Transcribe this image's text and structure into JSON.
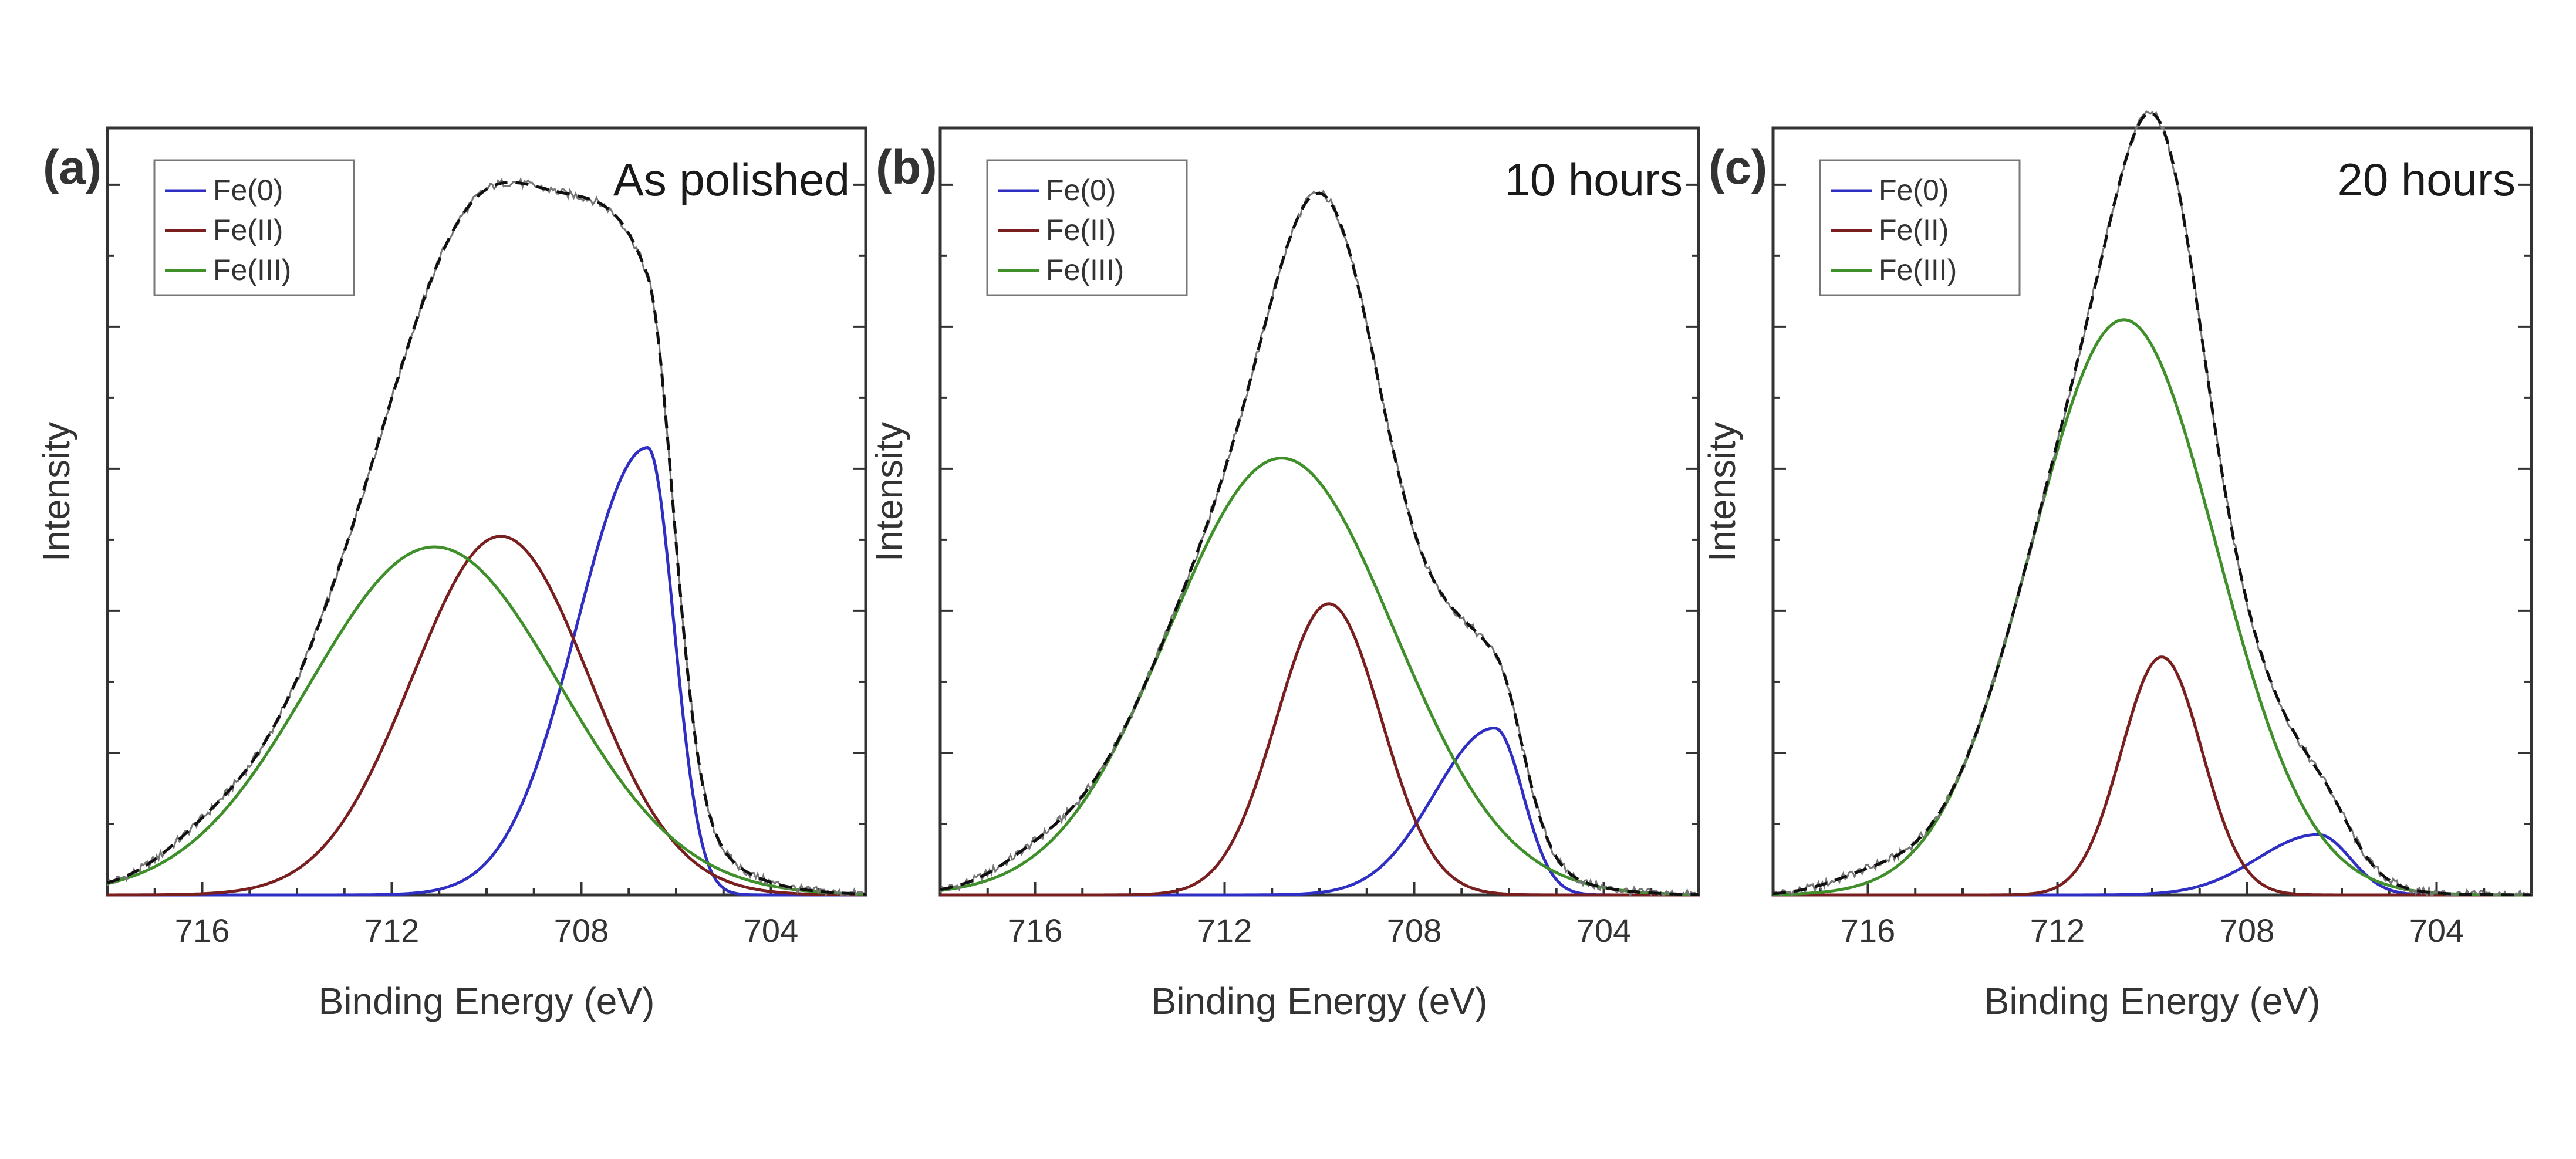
{
  "figure": {
    "colors": {
      "fe0": "#2f2fc4",
      "fe2": "#7a1f1f",
      "fe3": "#3f8f2a",
      "envelope": "#111111",
      "data": "#777777",
      "axis": "#333333"
    }
  },
  "chart_data": [
    {
      "type": "line",
      "panel_label": "(a)",
      "condition_label": "As polished",
      "xlabel": "Binding Energy (eV)",
      "ylabel": "Intensity",
      "x_reversed": true,
      "xlim": [
        718,
        702
      ],
      "ylim": [
        0,
        1.08
      ],
      "xticks": [
        716,
        712,
        708,
        704
      ],
      "xtick_labels": [
        "716",
        "712",
        "708",
        "704"
      ],
      "legend": {
        "placement": "top-left"
      },
      "series": [
        {
          "name": "Fe(0)",
          "color_key": "fe0",
          "peak": {
            "center": 706.6,
            "height": 0.63,
            "fwhm": 1.3,
            "tail": 3.5
          }
        },
        {
          "name": "Fe(II)",
          "color_key": "fe2",
          "peak": {
            "center": 709.7,
            "height": 0.505,
            "fwhm": 4.4
          }
        },
        {
          "name": "Fe(III)",
          "color_key": "fe3",
          "peak": {
            "center": 711.1,
            "height": 0.49,
            "fwhm": 6.2
          }
        }
      ],
      "envelope_peak": {
        "center": 716.0,
        "height": 0.02,
        "fwhm": 2.0
      }
    },
    {
      "type": "line",
      "panel_label": "(b)",
      "condition_label": "10 hours",
      "xlabel": "Binding Energy (eV)",
      "ylabel": "Intensity",
      "x_reversed": true,
      "xlim": [
        718,
        702
      ],
      "ylim": [
        0,
        1.08
      ],
      "xticks": [
        716,
        712,
        708,
        704
      ],
      "xtick_labels": [
        "716",
        "712",
        "708",
        "704"
      ],
      "legend": {
        "placement": "top-left"
      },
      "series": [
        {
          "name": "Fe(0)",
          "color_key": "fe0",
          "peak": {
            "center": 706.3,
            "height": 0.235,
            "fwhm": 1.4,
            "tail": 3.0
          }
        },
        {
          "name": "Fe(II)",
          "color_key": "fe2",
          "peak": {
            "center": 709.8,
            "height": 0.41,
            "fwhm": 2.6
          }
        },
        {
          "name": "Fe(III)",
          "color_key": "fe3",
          "peak": {
            "center": 710.8,
            "height": 0.615,
            "fwhm": 5.6
          }
        }
      ],
      "envelope_peak": {
        "center": 716.0,
        "height": 0.02,
        "fwhm": 2.0
      }
    },
    {
      "type": "line",
      "panel_label": "(c)",
      "condition_label": "20 hours",
      "xlabel": "Binding Energy (eV)",
      "ylabel": "Intensity",
      "x_reversed": true,
      "xlim": [
        718,
        702
      ],
      "ylim": [
        0,
        1.08
      ],
      "xticks": [
        716,
        712,
        708,
        704
      ],
      "xtick_labels": [
        "716",
        "712",
        "708",
        "704"
      ],
      "legend": {
        "placement": "top-left"
      },
      "series": [
        {
          "name": "Fe(0)",
          "color_key": "fe0",
          "peak": {
            "center": 706.5,
            "height": 0.085,
            "fwhm": 1.6,
            "tail": 3.0
          }
        },
        {
          "name": "Fe(II)",
          "color_key": "fe2",
          "peak": {
            "center": 709.8,
            "height": 0.335,
            "fwhm": 2.0
          }
        },
        {
          "name": "Fe(III)",
          "color_key": "fe3",
          "peak": {
            "center": 710.6,
            "height": 0.81,
            "fwhm": 4.6
          }
        }
      ],
      "envelope_peak": {
        "center": 716.0,
        "height": 0.02,
        "fwhm": 2.0
      }
    }
  ]
}
